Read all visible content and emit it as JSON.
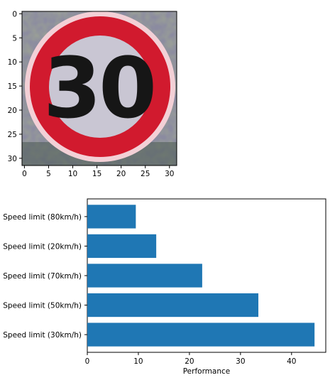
{
  "chart_data": [
    {
      "type": "image",
      "title": "",
      "subject": "speed limit 30 road sign",
      "sign_text": "30",
      "xlim": [
        -0.5,
        31.5
      ],
      "ylim": [
        31.5,
        -0.5
      ],
      "xticks": [
        0,
        5,
        10,
        15,
        20,
        25,
        30
      ],
      "yticks": [
        0,
        5,
        10,
        15,
        20,
        25,
        30
      ],
      "colors": {
        "ring": "#d11a2e",
        "inner": "#c9c6d3",
        "digits": "#161616",
        "background": "#8b8ba0"
      }
    },
    {
      "type": "bar",
      "orientation": "horizontal",
      "title": "",
      "xlabel": "Performance",
      "ylabel": "",
      "categories": [
        "Speed limit (30km/h)",
        "Speed limit (50km/h)",
        "Speed limit (70km/h)",
        "Speed limit (20km/h)",
        "Speed limit (80km/h)"
      ],
      "values": [
        44.5,
        33.5,
        22.5,
        13.5,
        9.5
      ],
      "xlim": [
        0,
        46.7
      ],
      "xticks": [
        0,
        10,
        20,
        30,
        40
      ],
      "bar_color": "#1f77b4"
    }
  ]
}
